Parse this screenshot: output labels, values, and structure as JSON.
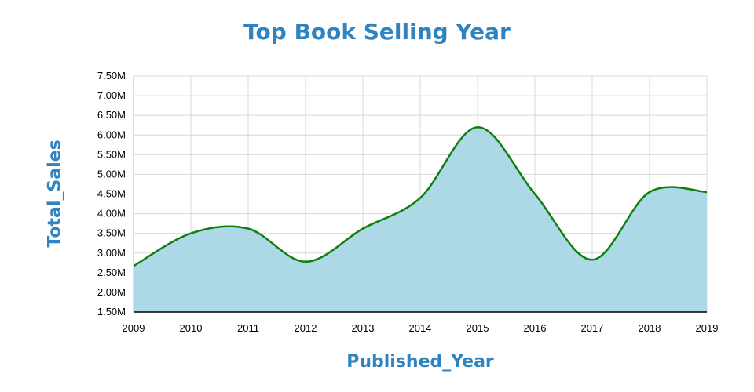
{
  "colors": {
    "title": "#2f83c0",
    "area_fill": "#add8e6",
    "line": "#0f7f0f",
    "grid": "#d8d8d8",
    "axis": "#000000"
  },
  "chart_data": {
    "type": "area",
    "title": "Top Book Selling Year",
    "xlabel": "Published_Year",
    "ylabel": "Total_Sales",
    "x": [
      2009,
      2010,
      2011,
      2012,
      2013,
      2014,
      2015,
      2016,
      2017,
      2018,
      2019
    ],
    "x_tick_labels": [
      "2009",
      "2010",
      "2011",
      "2012",
      "2013",
      "2014",
      "2015",
      "2016",
      "2017",
      "2018",
      "2019"
    ],
    "values": [
      2.67,
      3.5,
      3.62,
      2.78,
      3.62,
      4.4,
      6.2,
      4.5,
      2.83,
      4.55,
      4.55
    ],
    "ylim": [
      1.5,
      7.5
    ],
    "y_ticks": [
      1.5,
      2.0,
      2.5,
      3.0,
      3.5,
      4.0,
      4.5,
      5.0,
      5.5,
      6.0,
      6.5,
      7.0,
      7.5
    ],
    "y_tick_labels": [
      "1.50M",
      "2.00M",
      "2.50M",
      "3.00M",
      "3.50M",
      "4.00M",
      "4.50M",
      "5.00M",
      "5.50M",
      "6.00M",
      "6.50M",
      "7.00M",
      "7.50M"
    ],
    "grid": true,
    "smooth": true
  }
}
